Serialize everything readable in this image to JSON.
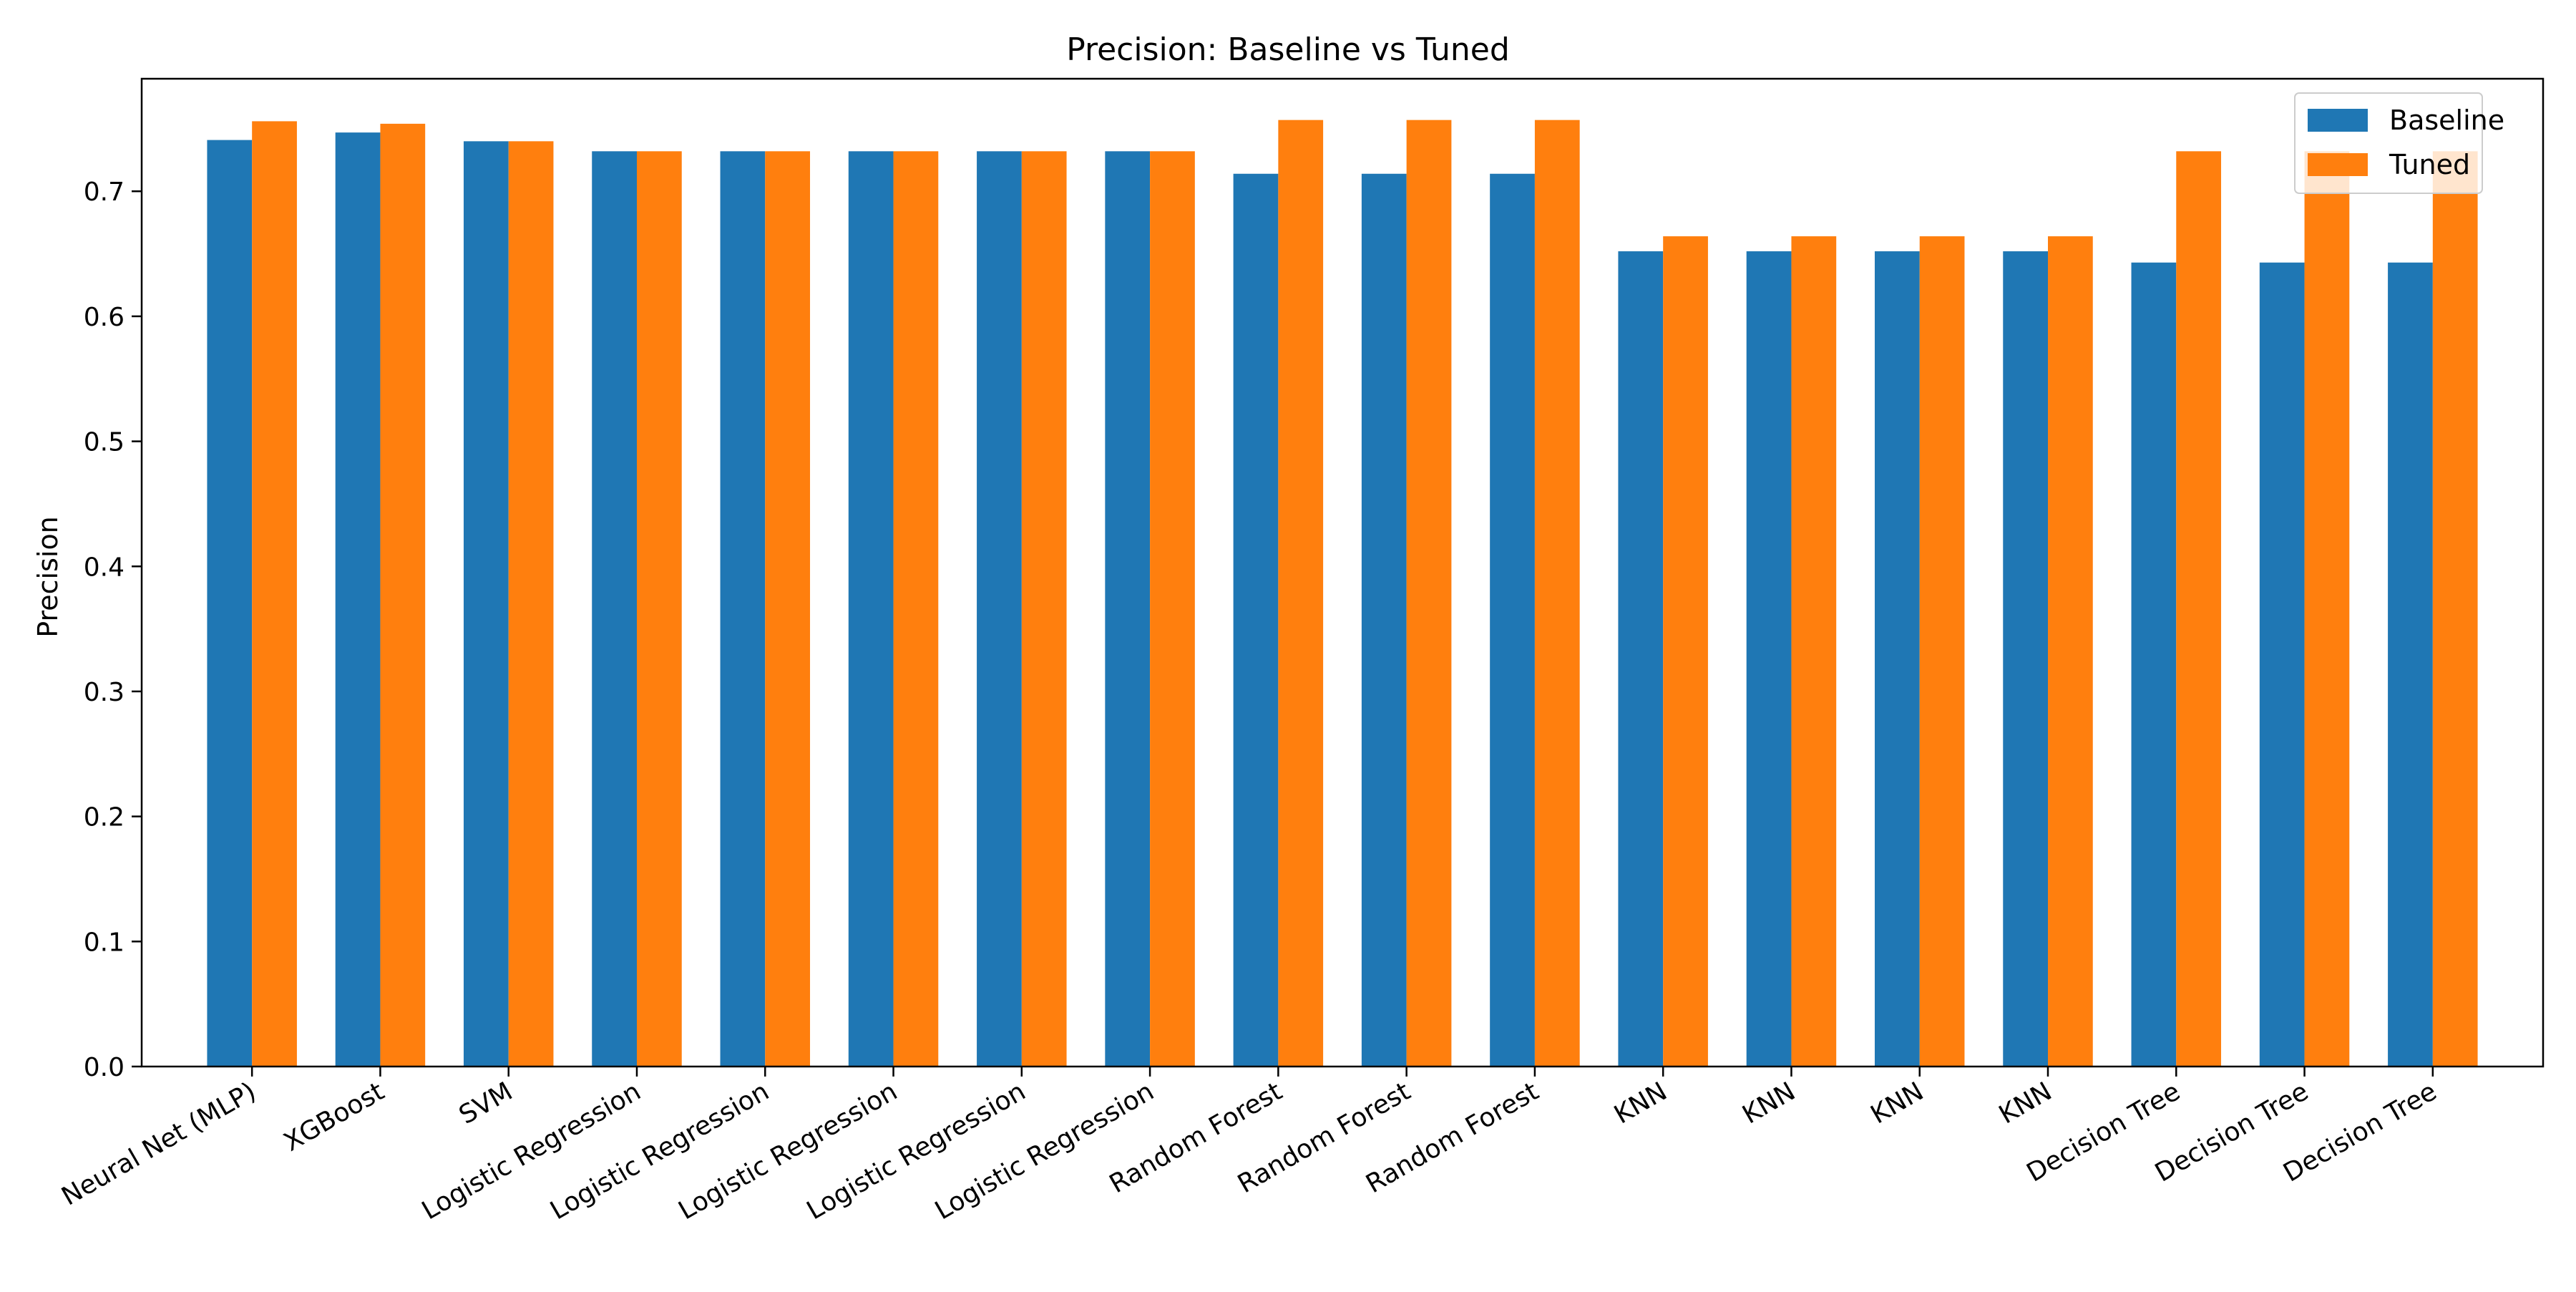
{
  "chart_data": {
    "type": "bar",
    "title": "Precision: Baseline vs Tuned",
    "xlabel": "",
    "ylabel": "Precision",
    "ylim": [
      0,
      0.79
    ],
    "yticks": [
      0.0,
      0.1,
      0.2,
      0.3,
      0.4,
      0.5,
      0.6,
      0.7
    ],
    "ytick_labels": [
      "0.0",
      "0.1",
      "0.2",
      "0.3",
      "0.4",
      "0.5",
      "0.6",
      "0.7"
    ],
    "grid": false,
    "legend_position": "top-right",
    "categories": [
      "Neural Net (MLP)",
      "XGBoost",
      "SVM",
      "Logistic Regression",
      "Logistic Regression",
      "Logistic Regression",
      "Logistic Regression",
      "Logistic Regression",
      "Random Forest",
      "Random Forest",
      "Random Forest",
      "KNN",
      "KNN",
      "KNN",
      "KNN",
      "Decision Tree",
      "Decision Tree",
      "Decision Tree"
    ],
    "series": [
      {
        "name": "Baseline",
        "color": "#1f77b4",
        "values": [
          0.741,
          0.747,
          0.74,
          0.732,
          0.732,
          0.732,
          0.732,
          0.732,
          0.714,
          0.714,
          0.714,
          0.652,
          0.652,
          0.652,
          0.652,
          0.643,
          0.643,
          0.643
        ]
      },
      {
        "name": "Tuned",
        "color": "#ff7f0e",
        "values": [
          0.756,
          0.754,
          0.74,
          0.732,
          0.732,
          0.732,
          0.732,
          0.732,
          0.757,
          0.757,
          0.757,
          0.664,
          0.664,
          0.664,
          0.664,
          0.732,
          0.732,
          0.732
        ]
      }
    ]
  }
}
